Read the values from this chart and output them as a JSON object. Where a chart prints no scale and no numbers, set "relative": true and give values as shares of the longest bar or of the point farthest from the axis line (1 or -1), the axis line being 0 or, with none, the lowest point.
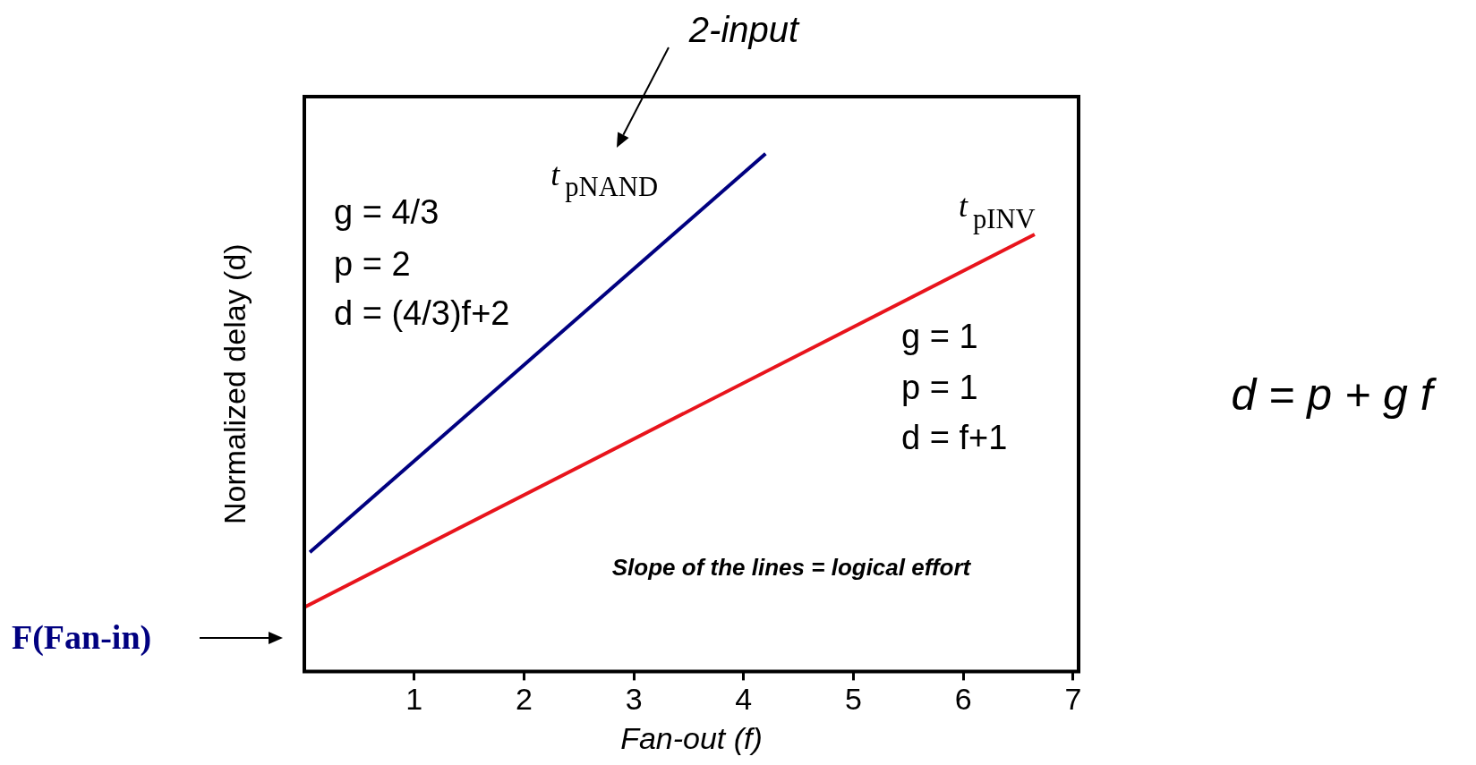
{
  "chart_data": {
    "type": "line",
    "relative": true,
    "xlabel": "Fan-out (f)",
    "ylabel": "Normalized delay (d)",
    "xlim": [
      0,
      7.05
    ],
    "xticks": [
      1,
      2,
      3,
      4,
      5,
      6,
      7
    ],
    "grid": false,
    "legend": false,
    "marker": "none",
    "line_style": "solid",
    "series": [
      {
        "name": "t$_{pNAND}$",
        "color": "#000080",
        "x": [
          0.05,
          4.2
        ],
        "values": [
          0.23,
          1
        ]
      },
      {
        "name": "t$_{pINV}$",
        "color": "#e8141c",
        "x": [
          0,
          6.65
        ],
        "values": [
          0.124,
          0.844
        ]
      }
    ],
    "annotations": [
      "2-input",
      "g = 4/3",
      "p = 2",
      "d = (4/3)f+2",
      "g = 1",
      "p = 1",
      "d = f+1",
      "Slope of the lines = logical effort",
      "F(Fan-in)",
      "d = p + g f"
    ]
  }
}
